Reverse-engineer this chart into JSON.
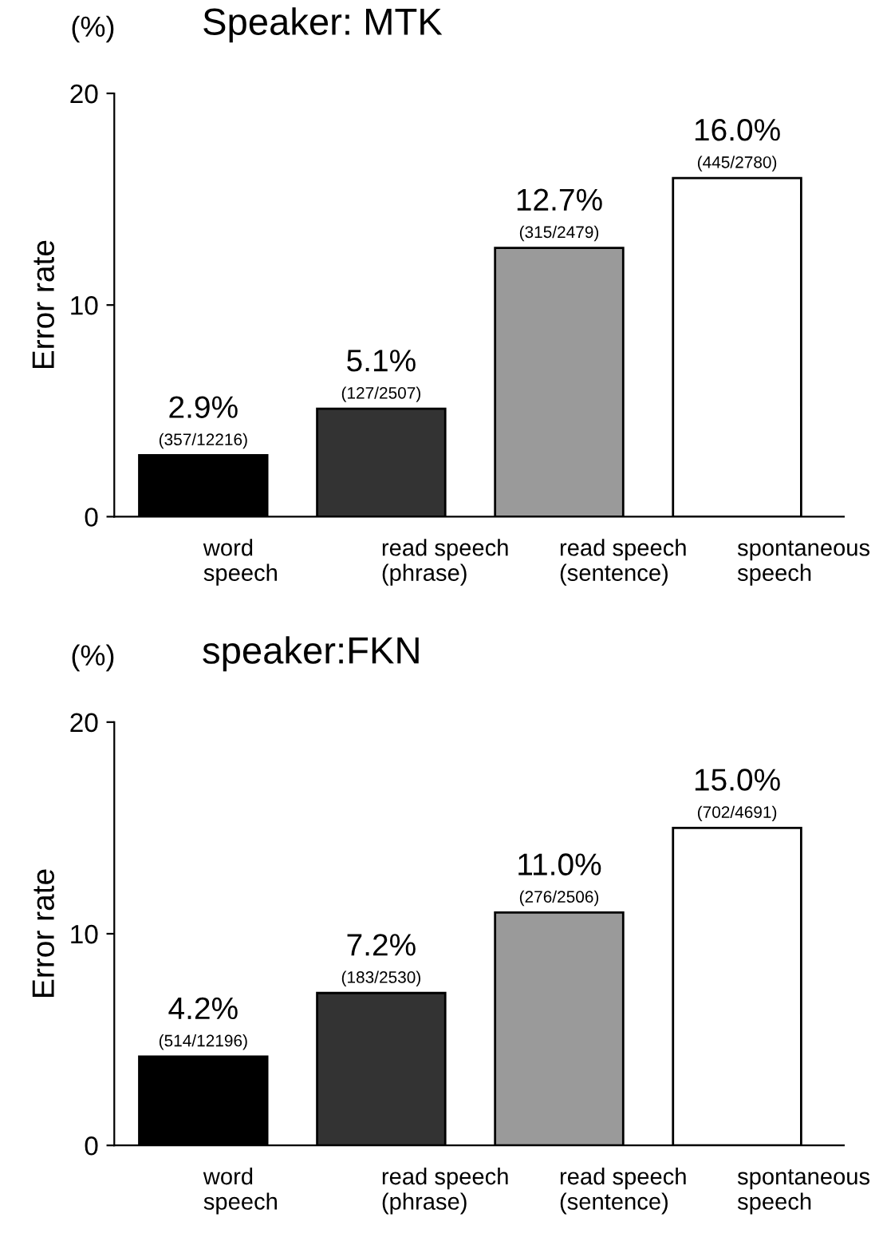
{
  "chart_data": [
    {
      "type": "bar",
      "title": "Speaker: MTK",
      "ylabel": "Error rate",
      "annotations": [
        "(%)"
      ],
      "categories": [
        "word\nspeech",
        "read speech\n(phrase)",
        "read speech\n(sentence)",
        "spontaneous\nspeech"
      ],
      "values": [
        2.9,
        5.1,
        12.7,
        16.0
      ],
      "colors": [
        "#000000",
        "#333333",
        "#9a9a9a",
        "#ffffff"
      ],
      "value_labels": [
        "2.9%\n(357/12216)",
        "5.1%\n(127/2507)",
        "12.7%\n(315/2479)",
        "16.0%\n(445/2780)"
      ],
      "ylim": [
        0,
        20
      ],
      "yticks": [
        0,
        10,
        20
      ],
      "grid": false,
      "legend": false
    },
    {
      "type": "bar",
      "title": "speaker:FKN",
      "ylabel": "Error rate",
      "annotations": [
        "(%)"
      ],
      "categories": [
        "word\nspeech",
        "read speech\n(phrase)",
        "read speech\n(sentence)",
        "spontaneous\nspeech"
      ],
      "values": [
        4.2,
        7.2,
        11.0,
        15.0
      ],
      "colors": [
        "#000000",
        "#333333",
        "#9a9a9a",
        "#ffffff"
      ],
      "value_labels": [
        "4.2%\n(514/12196)",
        "7.2%\n(183/2530)",
        "11.0%\n(276/2506)",
        "15.0%\n(702/4691)"
      ],
      "ylim": [
        0,
        20
      ],
      "yticks": [
        0,
        10,
        20
      ],
      "grid": false,
      "legend": false
    }
  ]
}
